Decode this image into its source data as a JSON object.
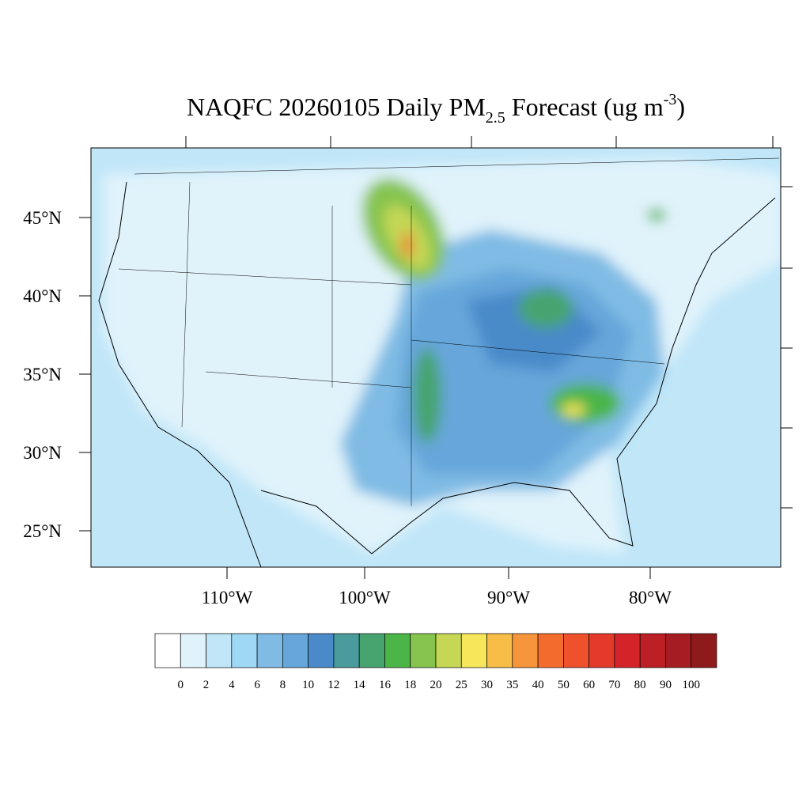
{
  "title": {
    "parts": [
      "NAQFC 20260105 Daily PM",
      "2.5",
      " Forecast (ug m",
      "-3",
      ")"
    ]
  },
  "map": {
    "lat_labels": [
      "45°N",
      "40°N",
      "35°N",
      "30°N",
      "25°N"
    ],
    "lon_labels": [
      "110°W",
      "100°W",
      "90°W",
      "80°W"
    ]
  },
  "colorbar": {
    "levels": [
      0,
      2,
      4,
      6,
      8,
      10,
      12,
      14,
      16,
      18,
      20,
      25,
      30,
      35,
      40,
      50,
      60,
      70,
      80,
      90,
      100
    ],
    "colors": [
      "#ffffff",
      "#e0f3fb",
      "#c0e6f8",
      "#9fd8f4",
      "#7fbbe4",
      "#66a6da",
      "#4a8ac9",
      "#4a9b9b",
      "#47a46f",
      "#4bb548",
      "#86c44f",
      "#c5d754",
      "#f7e65a",
      "#f8bd46",
      "#f6953b",
      "#f46b2e",
      "#ee512c",
      "#e33a2c",
      "#d5232a",
      "#bc1f25",
      "#a51d22",
      "#8f1a1c"
    ]
  }
}
